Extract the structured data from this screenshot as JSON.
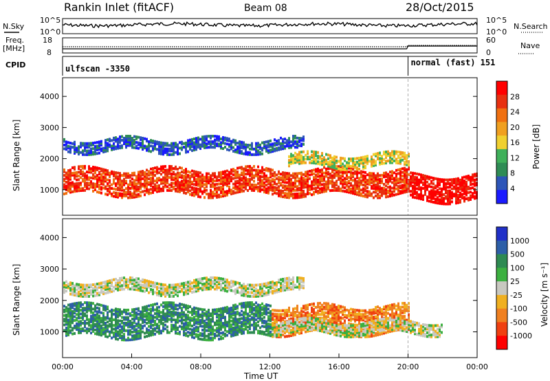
{
  "header": {
    "title": "Rankin Inlet (fitACF)",
    "beam": "Beam 08",
    "date": "28/Oct/2015"
  },
  "side_labels": {
    "nsky": "N.Sky",
    "nsearch": "N.Search",
    "freq_line1": "Freq.",
    "freq_line2": "[MHz]",
    "nave": "Nave",
    "cpid": "CPID"
  },
  "cpid": {
    "seg1": "ulfscan -3350",
    "seg2": "normal (fast) 151",
    "change_time": 20.0
  },
  "colors": {
    "power": [
      "#1a1aff",
      "#2d55b8",
      "#2f8c55",
      "#3fb05a",
      "#f0d030",
      "#f0a020",
      "#f07010",
      "#e83010",
      "#ff0000"
    ],
    "velocity": [
      "#2030c8",
      "#2d5fa8",
      "#2e8a52",
      "#3cb040",
      "#c8c8c0",
      "#f0b020",
      "#f08020",
      "#f04010",
      "#ff0000"
    ]
  },
  "chart_data": [
    {
      "type": "line",
      "name": "noise",
      "ylim_ticks": [
        "10^0",
        "10^5"
      ],
      "right_ticks": [
        "10^5",
        "10^0"
      ],
      "series": [
        {
          "name": "N.Sky",
          "style": "solid",
          "level": 0.75
        },
        {
          "name": "N.Search",
          "style": "dotted",
          "level": 0.6
        }
      ]
    },
    {
      "type": "line",
      "name": "freq_nave",
      "freq_ticks": [
        "18",
        "8"
      ],
      "nave_ticks": [
        "60",
        "0"
      ],
      "series": [
        {
          "name": "Freq.",
          "unit": "MHz",
          "level": 10.3
        },
        {
          "name": "Nave",
          "level": 25
        }
      ]
    },
    {
      "type": "heatmap",
      "name": "power",
      "ylabel": "Slant Range [km]",
      "yticks": [
        1000,
        2000,
        3000,
        4000
      ],
      "ylim": [
        180,
        4600
      ],
      "xlim": [
        0,
        24
      ],
      "colorbar": {
        "label": "Power [dB]",
        "ticks": [
          "28",
          "24",
          "20",
          "16",
          "12",
          "8",
          "4"
        ]
      },
      "bands": [
        {
          "t": [
            0,
            20
          ],
          "range": [
            800,
            1600
          ],
          "color_index": 7
        },
        {
          "t": [
            20,
            24
          ],
          "range": [
            600,
            1400
          ],
          "color_index": 8
        },
        {
          "t": [
            13,
            20
          ],
          "range": [
            1700,
            2100
          ],
          "color_index": 4
        },
        {
          "t": [
            0,
            14
          ],
          "range": [
            2200,
            2600
          ],
          "color_index": 1
        }
      ]
    },
    {
      "type": "heatmap",
      "name": "velocity",
      "ylabel": "Slant Range [km]",
      "yticks": [
        1000,
        2000,
        3000,
        4000
      ],
      "ylim": [
        180,
        4600
      ],
      "xlim": [
        0,
        24
      ],
      "xticks": [
        "00:00",
        "04:00",
        "08:00",
        "12:00",
        "16:00",
        "20:00",
        "00:00"
      ],
      "xlabel": "Time UT",
      "colorbar": {
        "label": "Velocity [m s⁻¹]",
        "ticks": [
          "1000",
          "500",
          "100",
          "25",
          "-25",
          "-100",
          "-500",
          "-1000"
        ]
      },
      "bands": [
        {
          "t": [
            0,
            12
          ],
          "range": [
            800,
            1800
          ],
          "color_index": 2
        },
        {
          "t": [
            12,
            20
          ],
          "range": [
            900,
            1800
          ],
          "color_index": 6
        },
        {
          "t": [
            12,
            22
          ],
          "range": [
            900,
            1300
          ],
          "color_index": 4
        },
        {
          "t": [
            0,
            14
          ],
          "range": [
            2200,
            2600
          ],
          "color_index": 4
        }
      ]
    }
  ]
}
